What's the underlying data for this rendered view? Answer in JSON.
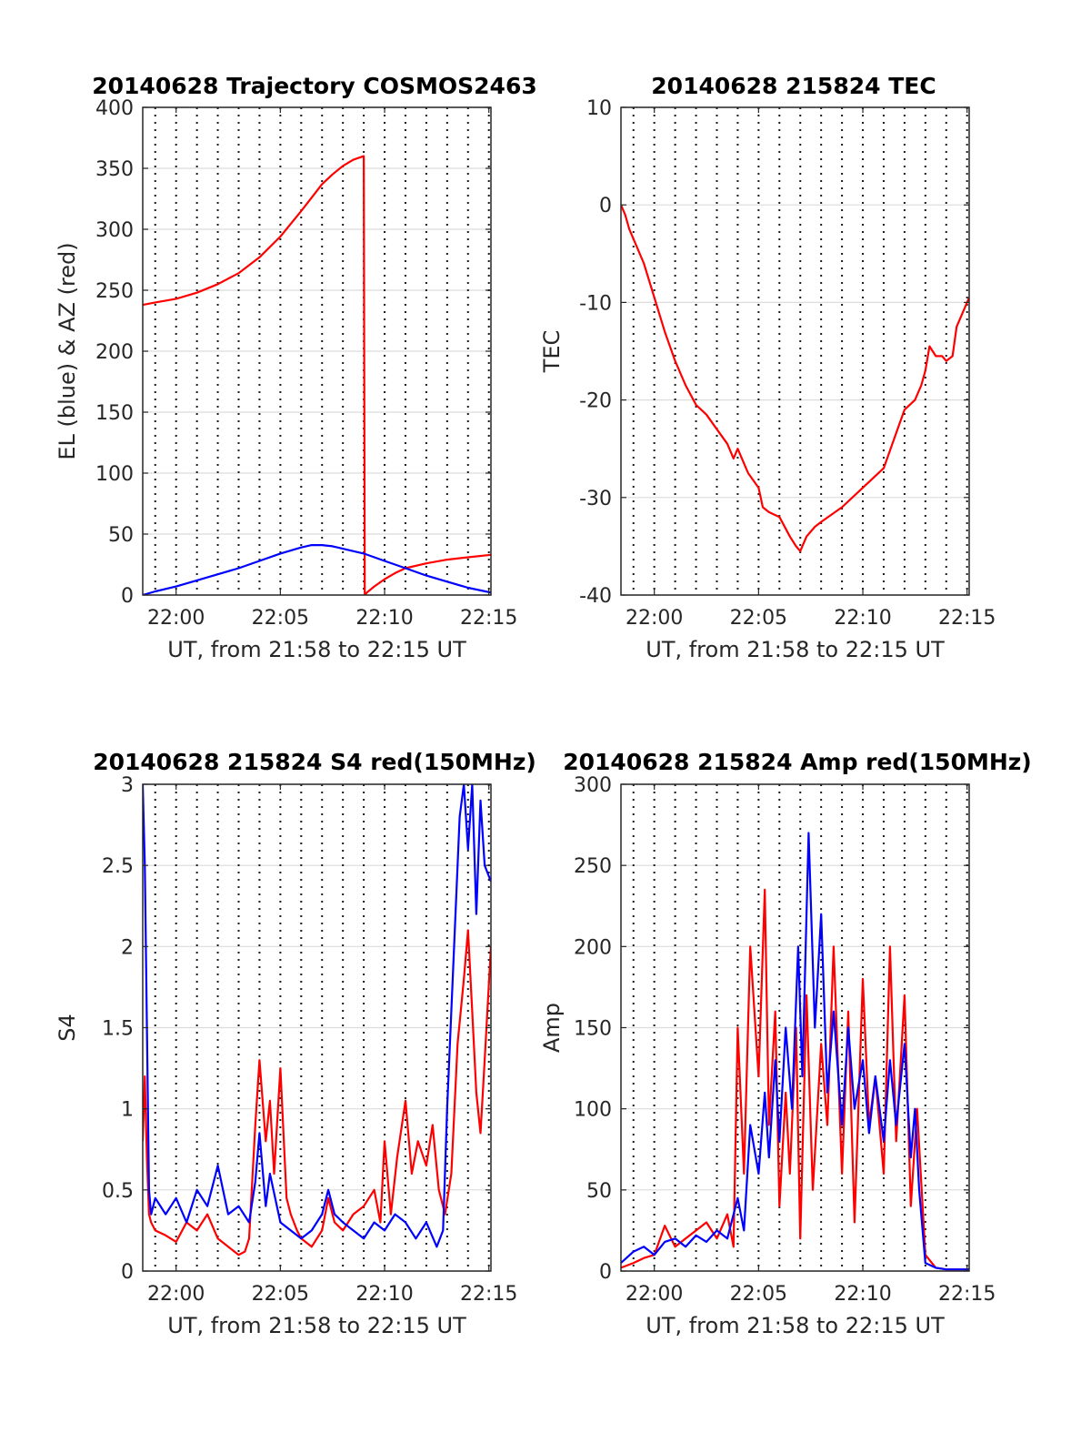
{
  "colors": {
    "el": "#0000ff",
    "az": "#ff0000",
    "red": "#ff0000",
    "blue": "#0000ff"
  },
  "chart_data": [
    {
      "type": "line",
      "title": "20140628 Trajectory COSMOS2463",
      "xlabel": "UT, from 21:58 to 22:15 UT",
      "ylabel": "EL (blue) & AZ (red)",
      "xlim": [
        -1.6,
        15.1
      ],
      "ylim": [
        0,
        400
      ],
      "xticks": [
        0,
        5,
        10,
        15
      ],
      "xtick_labels": [
        "22:00",
        "22:05",
        "22:10",
        "22:15"
      ],
      "yticks": [
        0,
        50,
        100,
        150,
        200,
        250,
        300,
        350,
        400
      ],
      "ytick_labels": [
        "0",
        "50",
        "100",
        "150",
        "200",
        "250",
        "300",
        "350",
        "400"
      ],
      "grid": true,
      "series": [
        {
          "color": "#ff0000",
          "x": [
            -1.6,
            -1,
            0,
            1,
            2,
            3,
            4,
            5,
            6,
            6.5,
            7,
            7.5,
            8,
            8.5,
            9,
            9.05,
            9.15,
            9.5,
            10,
            10.5,
            11,
            12,
            13,
            14,
            15.1
          ],
          "y": [
            238,
            240,
            243,
            248,
            255,
            264,
            277,
            294,
            315,
            326,
            337,
            345,
            352,
            357,
            360,
            0,
            2,
            7,
            13,
            18,
            22,
            26,
            29,
            31,
            33
          ]
        },
        {
          "color": "#0000ff",
          "x": [
            -1.6,
            -1,
            0,
            1,
            2,
            3,
            4,
            5,
            6,
            6.5,
            7,
            7.5,
            8,
            9,
            10,
            11,
            12,
            13,
            14,
            15.1
          ],
          "y": [
            0,
            3,
            7,
            12,
            17,
            22,
            28,
            34,
            39,
            41,
            41,
            40,
            38,
            34,
            28,
            22,
            16,
            11,
            6,
            2
          ]
        }
      ]
    },
    {
      "type": "line",
      "title": "20140628 215824 TEC",
      "xlabel": "UT, from 21:58 to 22:15 UT",
      "ylabel": "TEC",
      "xlim": [
        -1.6,
        15.1
      ],
      "ylim": [
        -40,
        10
      ],
      "xticks": [
        0,
        5,
        10,
        15
      ],
      "xtick_labels": [
        "22:00",
        "22:05",
        "22:10",
        "22:15"
      ],
      "yticks": [
        -40,
        -30,
        -20,
        -10,
        0,
        10
      ],
      "ytick_labels": [
        "-40",
        "-30",
        "-20",
        "-10",
        "0",
        "10"
      ],
      "grid": true,
      "series": [
        {
          "color": "#ff0000",
          "x": [
            -1.6,
            -1.4,
            -1.2,
            -1,
            -0.5,
            0,
            0.5,
            1,
            1.5,
            2,
            2.5,
            3,
            3.5,
            3.8,
            4,
            4.3,
            4.5,
            5,
            5.2,
            5.5,
            6,
            6.5,
            6.8,
            7,
            7.3,
            7.7,
            8,
            9,
            10,
            11,
            11.5,
            12,
            12.5,
            12.8,
            13,
            13.2,
            13.5,
            13.8,
            14,
            14.3,
            14.5,
            14.8,
            15.1
          ],
          "y": [
            0,
            -1,
            -2.5,
            -3.5,
            -6,
            -9.5,
            -13,
            -16,
            -18.5,
            -20.5,
            -21.5,
            -23,
            -24.5,
            -26,
            -25,
            -26.5,
            -27.5,
            -29,
            -31,
            -31.5,
            -32,
            -34,
            -35,
            -35.5,
            -34,
            -33,
            -32.5,
            -31,
            -29,
            -27,
            -24,
            -21,
            -20,
            -18.5,
            -17,
            -14.5,
            -15.5,
            -15.5,
            -16,
            -15.5,
            -12.5,
            -11,
            -9.5
          ]
        }
      ]
    },
    {
      "type": "line",
      "title": "20140628 215824 S4 red(150MHz)",
      "xlabel": "UT, from 21:58 to 22:15 UT",
      "ylabel": "S4",
      "xlim": [
        -1.6,
        15.1
      ],
      "ylim": [
        0,
        3
      ],
      "xticks": [
        0,
        5,
        10,
        15
      ],
      "xtick_labels": [
        "22:00",
        "22:05",
        "22:10",
        "22:15"
      ],
      "yticks": [
        0,
        0.5,
        1,
        1.5,
        2,
        2.5,
        3
      ],
      "ytick_labels": [
        "0",
        "0.5",
        "1",
        "1.5",
        "2",
        "2.5",
        "3"
      ],
      "grid": true,
      "series": [
        {
          "color": "#ff0000",
          "x": [
            -1.6,
            -1.5,
            -1.4,
            -1.3,
            -1.2,
            -1,
            -0.5,
            0,
            0.5,
            1,
            1.5,
            2,
            2.5,
            3,
            3.3,
            3.5,
            3.8,
            4,
            4.3,
            4.5,
            4.7,
            5,
            5.3,
            5.5,
            5.8,
            6,
            6.5,
            7,
            7.3,
            7.6,
            8,
            8.5,
            9,
            9.5,
            9.8,
            10,
            10.3,
            10.6,
            11,
            11.3,
            11.6,
            12,
            12.3,
            12.6,
            12.9,
            13.2,
            13.5,
            13.8,
            14,
            14.2,
            14.4,
            14.6,
            14.8,
            15.1
          ],
          "y": [
            0.8,
            1.2,
            0.7,
            0.35,
            0.3,
            0.25,
            0.22,
            0.18,
            0.3,
            0.25,
            0.35,
            0.2,
            0.15,
            0.1,
            0.12,
            0.2,
            0.9,
            1.3,
            0.8,
            1.05,
            0.6,
            1.25,
            0.45,
            0.35,
            0.25,
            0.2,
            0.15,
            0.25,
            0.45,
            0.3,
            0.25,
            0.35,
            0.4,
            0.5,
            0.3,
            0.8,
            0.35,
            0.7,
            1.05,
            0.6,
            0.8,
            0.65,
            0.9,
            0.5,
            0.35,
            0.6,
            1.4,
            1.8,
            2.1,
            1.6,
            1.1,
            0.85,
            1.3,
            2.0
          ]
        },
        {
          "color": "#0000ff",
          "x": [
            -1.6,
            -1.5,
            -1.4,
            -1.3,
            -1.2,
            -1,
            -0.5,
            0,
            0.5,
            1,
            1.5,
            2,
            2.5,
            3,
            3.5,
            3.8,
            4,
            4.3,
            4.5,
            5,
            5.5,
            6,
            6.5,
            7,
            7.3,
            7.6,
            8,
            8.5,
            9,
            9.5,
            10,
            10.5,
            11,
            11.5,
            12,
            12.5,
            12.8,
            13,
            13.2,
            13.4,
            13.6,
            13.8,
            14,
            14.2,
            14.4,
            14.6,
            14.8,
            15.1
          ],
          "y": [
            3.0,
            2.5,
            1.5,
            0.5,
            0.35,
            0.45,
            0.35,
            0.45,
            0.3,
            0.5,
            0.4,
            0.65,
            0.35,
            0.4,
            0.3,
            0.55,
            0.85,
            0.4,
            0.6,
            0.3,
            0.25,
            0.2,
            0.25,
            0.35,
            0.5,
            0.35,
            0.3,
            0.25,
            0.2,
            0.3,
            0.25,
            0.35,
            0.3,
            0.2,
            0.3,
            0.15,
            0.25,
            1.0,
            1.6,
            2.2,
            2.8,
            3.0,
            2.6,
            3.0,
            2.2,
            2.9,
            2.5,
            2.4
          ]
        }
      ]
    },
    {
      "type": "line",
      "title": "20140628 215824 Amp red(150MHz)",
      "xlabel": "UT, from 21:58 to 22:15 UT",
      "ylabel": "Amp",
      "xlim": [
        -1.6,
        15.1
      ],
      "ylim": [
        0,
        300
      ],
      "xticks": [
        0,
        5,
        10,
        15
      ],
      "xtick_labels": [
        "22:00",
        "22:05",
        "22:10",
        "22:15"
      ],
      "yticks": [
        0,
        50,
        100,
        150,
        200,
        250,
        300
      ],
      "ytick_labels": [
        "0",
        "50",
        "100",
        "150",
        "200",
        "250",
        "300"
      ],
      "grid": true,
      "series": [
        {
          "color": "#ff0000",
          "x": [
            -1.6,
            -1,
            -0.5,
            0,
            0.5,
            1,
            1.5,
            2,
            2.5,
            3,
            3.5,
            3.8,
            4,
            4.3,
            4.6,
            5,
            5.3,
            5.5,
            5.8,
            6,
            6.3,
            6.5,
            6.8,
            7,
            7.3,
            7.6,
            8,
            8.3,
            8.6,
            9,
            9.3,
            9.6,
            10,
            10.3,
            10.6,
            11,
            11.3,
            11.6,
            12,
            12.3,
            12.6,
            13,
            13.5,
            14,
            14.5,
            15.1
          ],
          "y": [
            2,
            5,
            8,
            10,
            28,
            15,
            20,
            25,
            30,
            20,
            35,
            15,
            150,
            60,
            200,
            120,
            235,
            90,
            160,
            40,
            110,
            60,
            150,
            20,
            170,
            50,
            140,
            90,
            200,
            60,
            160,
            30,
            180,
            90,
            120,
            60,
            200,
            80,
            170,
            40,
            100,
            10,
            2,
            1,
            1,
            1
          ]
        },
        {
          "color": "#0000ff",
          "x": [
            -1.6,
            -1,
            -0.5,
            0,
            0.5,
            1,
            1.5,
            2,
            2.5,
            3,
            3.5,
            4,
            4.3,
            4.6,
            5,
            5.3,
            5.5,
            5.8,
            6,
            6.3,
            6.6,
            6.9,
            7.1,
            7.4,
            7.7,
            8,
            8.3,
            8.6,
            9,
            9.3,
            9.6,
            10,
            10.3,
            10.6,
            11,
            11.3,
            11.6,
            12,
            12.3,
            12.5,
            12.7,
            13,
            13.5,
            14,
            14.5,
            15.1
          ],
          "y": [
            5,
            12,
            15,
            10,
            18,
            20,
            15,
            22,
            18,
            25,
            20,
            45,
            25,
            90,
            60,
            110,
            70,
            130,
            80,
            150,
            100,
            200,
            120,
            270,
            150,
            220,
            110,
            160,
            90,
            150,
            100,
            130,
            85,
            120,
            80,
            130,
            90,
            140,
            70,
            100,
            50,
            5,
            2,
            1,
            1,
            1
          ]
        }
      ]
    }
  ]
}
